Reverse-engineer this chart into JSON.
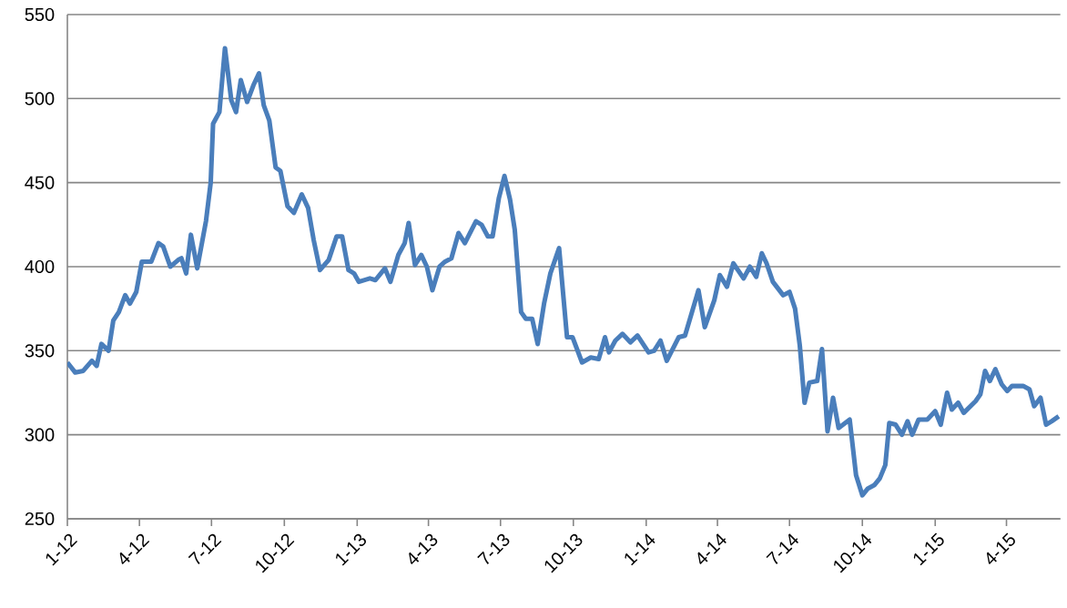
{
  "chart_data": {
    "type": "line",
    "color": "#4a7ebb",
    "marker": "none",
    "line_style": "solid",
    "grid": "y",
    "xlim": [
      "2012-01-01",
      "2015-06-08"
    ],
    "ylim": [
      250,
      550
    ],
    "yticks": [
      250,
      300,
      350,
      400,
      450,
      500,
      550
    ],
    "xticks": [
      {
        "value": "2012-01-01",
        "label": "1-12"
      },
      {
        "value": "2012-04-01",
        "label": "4-12"
      },
      {
        "value": "2012-07-01",
        "label": "7-12"
      },
      {
        "value": "2012-10-01",
        "label": "10-12"
      },
      {
        "value": "2013-01-01",
        "label": "1-13"
      },
      {
        "value": "2013-04-01",
        "label": "4-13"
      },
      {
        "value": "2013-07-01",
        "label": "7-13"
      },
      {
        "value": "2013-10-01",
        "label": "10-13"
      },
      {
        "value": "2014-01-01",
        "label": "1-14"
      },
      {
        "value": "2014-04-01",
        "label": "4-14"
      },
      {
        "value": "2014-07-01",
        "label": "7-14"
      },
      {
        "value": "2014-10-01",
        "label": "10-14"
      },
      {
        "value": "2015-01-01",
        "label": "1-15"
      },
      {
        "value": "2015-04-01",
        "label": "4-15"
      }
    ],
    "x": [
      "2012-01-01",
      "2012-01-11",
      "2012-01-21",
      "2012-02-01",
      "2012-02-07",
      "2012-02-13",
      "2012-02-22",
      "2012-02-28",
      "2012-03-06",
      "2012-03-14",
      "2012-03-20",
      "2012-03-28",
      "2012-04-04",
      "2012-04-16",
      "2012-04-25",
      "2012-05-01",
      "2012-05-10",
      "2012-05-20",
      "2012-05-24",
      "2012-05-30",
      "2012-06-05",
      "2012-06-13",
      "2012-06-24",
      "2012-06-30",
      "2012-07-03",
      "2012-07-11",
      "2012-07-18",
      "2012-07-26",
      "2012-08-01",
      "2012-08-07",
      "2012-08-15",
      "2012-08-23",
      "2012-08-30",
      "2012-09-05",
      "2012-09-12",
      "2012-09-20",
      "2012-09-26",
      "2012-10-05",
      "2012-10-13",
      "2012-10-23",
      "2012-10-31",
      "2012-11-07",
      "2012-11-15",
      "2012-11-26",
      "2012-12-06",
      "2012-12-13",
      "2012-12-21",
      "2012-12-28",
      "2013-01-03",
      "2013-01-17",
      "2013-01-24",
      "2013-02-05",
      "2013-02-12",
      "2013-02-22",
      "2013-03-02",
      "2013-03-07",
      "2013-03-15",
      "2013-03-23",
      "2013-03-30",
      "2013-04-06",
      "2013-04-15",
      "2013-04-22",
      "2013-04-30",
      "2013-05-09",
      "2013-05-17",
      "2013-05-31",
      "2013-06-07",
      "2013-06-15",
      "2013-06-21",
      "2013-06-29",
      "2013-07-06",
      "2013-07-13",
      "2013-07-19",
      "2013-07-27",
      "2013-08-02",
      "2013-08-10",
      "2013-08-17",
      "2013-08-25",
      "2013-09-02",
      "2013-09-13",
      "2013-09-23",
      "2013-09-30",
      "2013-10-12",
      "2013-10-23",
      "2013-11-02",
      "2013-11-10",
      "2013-11-15",
      "2013-11-23",
      "2013-12-02",
      "2013-12-12",
      "2013-12-21",
      "2014-01-04",
      "2014-01-11",
      "2014-01-19",
      "2014-01-27",
      "2014-02-11",
      "2014-02-19",
      "2014-03-08",
      "2014-03-16",
      "2014-03-28",
      "2014-04-04",
      "2014-04-13",
      "2014-04-21",
      "2014-05-04",
      "2014-05-12",
      "2014-05-20",
      "2014-05-27",
      "2014-06-02",
      "2014-06-10",
      "2014-06-23",
      "2014-07-01",
      "2014-07-08",
      "2014-07-14",
      "2014-07-20",
      "2014-07-26",
      "2014-08-05",
      "2014-08-11",
      "2014-08-18",
      "2014-08-25",
      "2014-09-01",
      "2014-09-15",
      "2014-09-23",
      "2014-10-01",
      "2014-10-08",
      "2014-10-16",
      "2014-10-23",
      "2014-10-30",
      "2014-11-04",
      "2014-11-12",
      "2014-11-20",
      "2014-11-27",
      "2014-12-03",
      "2014-12-11",
      "2014-12-22",
      "2015-01-01",
      "2015-01-08",
      "2015-01-16",
      "2015-01-22",
      "2015-01-30",
      "2015-02-06",
      "2015-02-21",
      "2015-02-27",
      "2015-03-05",
      "2015-03-11",
      "2015-03-18",
      "2015-03-26",
      "2015-04-02",
      "2015-04-08",
      "2015-04-22",
      "2015-04-30",
      "2015-05-06",
      "2015-05-14",
      "2015-05-21",
      "2015-05-28",
      "2015-06-06"
    ],
    "values": [
      343,
      337,
      338,
      344,
      341,
      354,
      350,
      368,
      373,
      383,
      378,
      385,
      403,
      403,
      414,
      412,
      400,
      404,
      405,
      396,
      419,
      399,
      427,
      450,
      485,
      492,
      530,
      499,
      492,
      511,
      498,
      508,
      515,
      496,
      487,
      459,
      457,
      436,
      432,
      443,
      435,
      416,
      398,
      404,
      418,
      418,
      398,
      396,
      391,
      393,
      392,
      399,
      391,
      407,
      414,
      426,
      401,
      407,
      400,
      386,
      400,
      403,
      405,
      420,
      414,
      427,
      425,
      418,
      418,
      441,
      454,
      440,
      422,
      373,
      369,
      369,
      354,
      378,
      396,
      411,
      358,
      358,
      343,
      346,
      345,
      358,
      349,
      356,
      360,
      355,
      359,
      349,
      350,
      356,
      344,
      358,
      359,
      386,
      364,
      380,
      395,
      388,
      402,
      393,
      400,
      394,
      408,
      402,
      391,
      383,
      385,
      375,
      353,
      319,
      331,
      332,
      351,
      302,
      322,
      304,
      309,
      276,
      264,
      268,
      270,
      274,
      282,
      307,
      306,
      300,
      308,
      300,
      309,
      309,
      314,
      306,
      325,
      315,
      319,
      313,
      320,
      324,
      338,
      332,
      339,
      330,
      326,
      329,
      329,
      327,
      317,
      322,
      306,
      308,
      311
    ]
  }
}
